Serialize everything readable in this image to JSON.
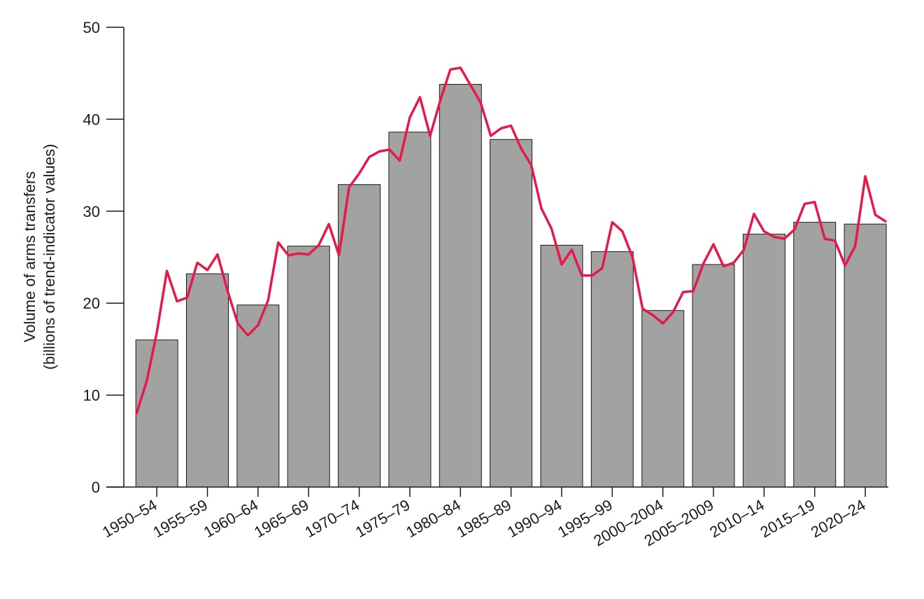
{
  "chart_data": {
    "type": "bar",
    "ylabel_line1": "Volume of arms transfers",
    "ylabel_line2": "(billions of trend-indicator values)",
    "ylim": [
      0,
      50
    ],
    "y_ticks": [
      0,
      10,
      20,
      30,
      40,
      50
    ],
    "categories": [
      "1950–54",
      "1955–59",
      "1960–64",
      "1965–69",
      "1970–74",
      "1975–79",
      "1980–84",
      "1985–89",
      "1990–94",
      "1995–99",
      "2000–2004",
      "2005–2009",
      "2010–14",
      "2015–19",
      "2020–24"
    ],
    "series": [
      {
        "type": "bar",
        "values": [
          16.0,
          23.2,
          19.8,
          26.2,
          32.9,
          38.6,
          43.8,
          37.8,
          26.3,
          25.6,
          19.2,
          24.2,
          27.5,
          28.8,
          28.6
        ]
      },
      {
        "type": "line",
        "x": [
          1950,
          1951,
          1952,
          1953,
          1954,
          1955,
          1956,
          1957,
          1958,
          1959,
          1960,
          1961,
          1962,
          1963,
          1964,
          1965,
          1966,
          1967,
          1968,
          1969,
          1970,
          1971,
          1972,
          1973,
          1974,
          1975,
          1976,
          1977,
          1978,
          1979,
          1980,
          1981,
          1982,
          1983,
          1984,
          1985,
          1986,
          1987,
          1988,
          1989,
          1990,
          1991,
          1992,
          1993,
          1994,
          1995,
          1996,
          1997,
          1998,
          1999,
          2000,
          2001,
          2002,
          2003,
          2004,
          2005,
          2006,
          2007,
          2008,
          2009,
          2010,
          2011,
          2012,
          2013,
          2014,
          2015,
          2016,
          2017,
          2018,
          2019,
          2020,
          2021,
          2022,
          2023,
          2024
        ],
        "values": [
          8.0,
          11.5,
          16.8,
          23.5,
          20.2,
          20.6,
          24.4,
          23.6,
          25.3,
          21.3,
          17.8,
          16.5,
          17.6,
          20.3,
          26.6,
          25.2,
          25.4,
          25.3,
          26.3,
          28.6,
          25.2,
          32.6,
          34.1,
          35.9,
          36.5,
          36.7,
          35.5,
          40.2,
          42.4,
          38.2,
          42.0,
          45.4,
          45.6,
          43.7,
          41.8,
          38.2,
          39.0,
          39.3,
          36.8,
          35.0,
          30.3,
          28.1,
          24.2,
          25.8,
          23.0,
          23.0,
          23.8,
          28.8,
          27.8,
          25.0,
          19.4,
          18.7,
          17.8,
          19.0,
          21.2,
          21.3,
          24.3,
          26.4,
          24.0,
          24.4,
          25.8,
          29.7,
          27.8,
          27.2,
          27.0,
          28.0,
          30.8,
          31.0,
          27.0,
          26.8,
          24.1,
          26.2,
          33.8,
          29.6,
          28.9
        ]
      }
    ],
    "colors": {
      "bar": "#a2a2a2",
      "bar_stroke": "#1a1a1a",
      "line": "#e5194a",
      "axis": "#1a1a1a"
    },
    "grid": false,
    "legend": "none"
  }
}
